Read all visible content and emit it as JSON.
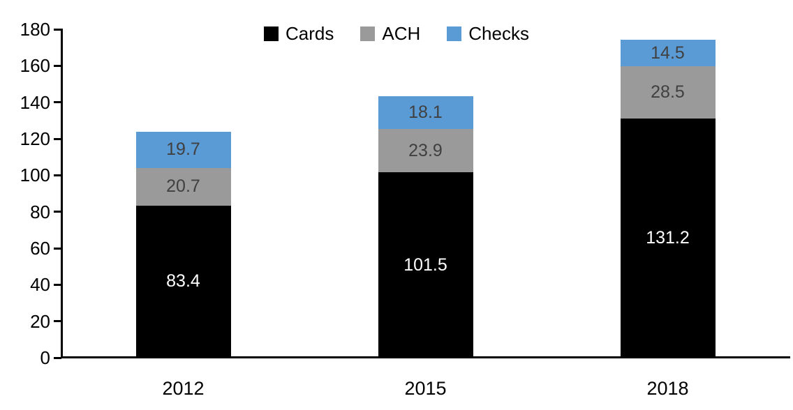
{
  "chart_data": {
    "type": "bar",
    "stacked": true,
    "title": "",
    "xlabel": "",
    "ylabel": "",
    "categories": [
      "2012",
      "2015",
      "2018"
    ],
    "series": [
      {
        "name": "Cards",
        "color": "#000000",
        "label_color": "#ffffff",
        "values": [
          83.4,
          101.5,
          131.2
        ]
      },
      {
        "name": "ACH",
        "color": "#9A9A9A",
        "label_color": "#404040",
        "values": [
          20.7,
          23.9,
          28.5
        ]
      },
      {
        "name": "Checks",
        "color": "#5B9BD5",
        "label_color": "#404040",
        "values": [
          19.7,
          18.1,
          14.5
        ]
      }
    ],
    "ylim": [
      0,
      180
    ],
    "yticks": [
      0,
      20,
      40,
      60,
      80,
      100,
      120,
      140,
      160,
      180
    ],
    "legend_position": "top-center",
    "legend_order": [
      "Cards",
      "ACH",
      "Checks"
    ],
    "grid": false,
    "axis_color": "#000000",
    "background_color": "#ffffff"
  }
}
